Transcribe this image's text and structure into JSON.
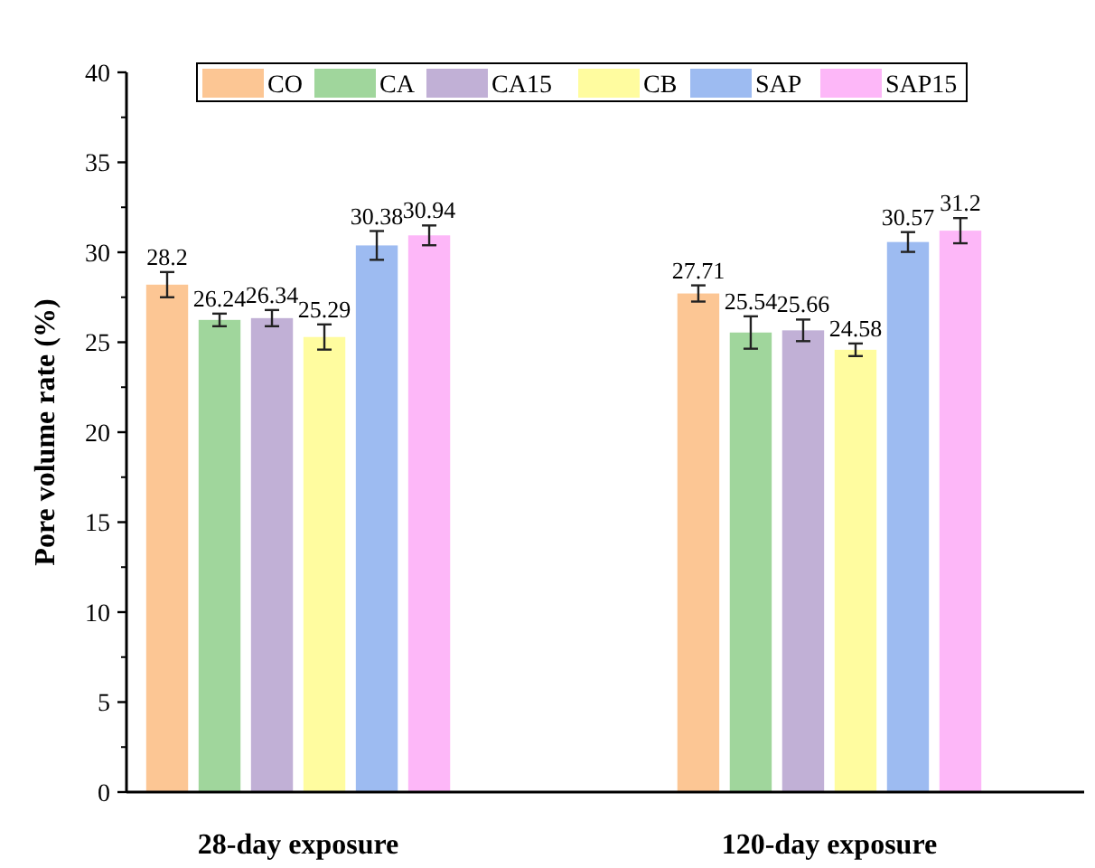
{
  "chart_data": {
    "type": "bar",
    "ylabel": "Pore volume rate (%)",
    "categories": [
      "28-day exposure",
      "120-day exposure"
    ],
    "series": [
      {
        "name": "CO",
        "color": "#fcc694",
        "values": [
          28.2,
          27.71
        ],
        "errors": [
          0.7,
          0.45
        ]
      },
      {
        "name": "CA",
        "color": "#a0d69c",
        "values": [
          26.24,
          25.54
        ],
        "errors": [
          0.35,
          0.9
        ]
      },
      {
        "name": "CA15",
        "color": "#c1b0d6",
        "values": [
          26.34,
          25.66
        ],
        "errors": [
          0.45,
          0.6
        ]
      },
      {
        "name": "CB",
        "color": "#fffc9f",
        "values": [
          25.29,
          24.58
        ],
        "errors": [
          0.7,
          0.35
        ]
      },
      {
        "name": "SAP",
        "color": "#9dbbf1",
        "values": [
          30.38,
          30.57
        ],
        "errors": [
          0.8,
          0.55
        ]
      },
      {
        "name": "SAP15",
        "color": "#fdb7f8",
        "values": [
          30.94,
          31.2
        ],
        "errors": [
          0.55,
          0.7
        ]
      }
    ],
    "ylim": [
      0,
      40
    ],
    "yticks": [
      0,
      5,
      10,
      15,
      20,
      25,
      30,
      35,
      40
    ],
    "data_labels": true,
    "legend": "top right",
    "grid": false
  }
}
